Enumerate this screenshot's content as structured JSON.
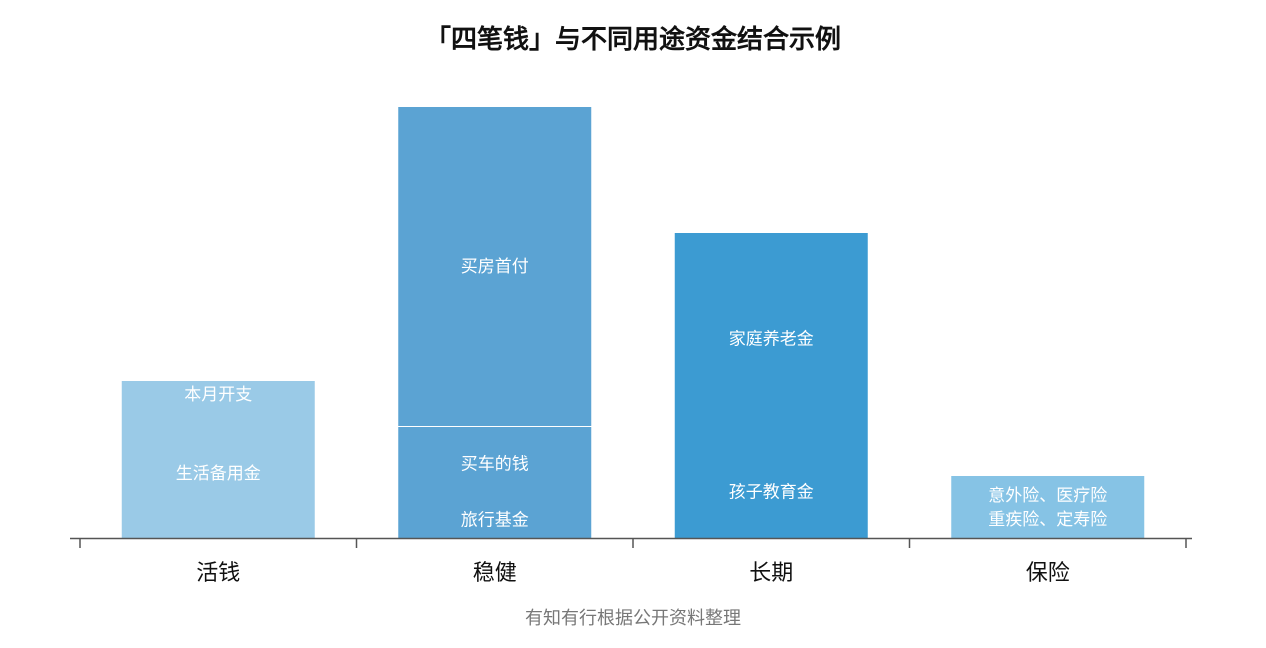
{
  "chart_data": {
    "type": "bar",
    "stacked": true,
    "title": "「四笔钱」与不同用途资金结合示例",
    "source": "有知有行根据公开资料整理",
    "categories": [
      "活钱",
      "稳健",
      "长期",
      "保险"
    ],
    "bars": [
      {
        "category": "活钱",
        "color": "#9ACAE7",
        "segments": [
          {
            "label": [
              "生活备用金"
            ],
            "value": 130
          },
          {
            "label": [
              "本月开支"
            ],
            "value": 28
          }
        ]
      },
      {
        "category": "稳健",
        "color": "#5BA3D3",
        "segments": [
          {
            "label": [
              "旅行基金"
            ],
            "value": 37
          },
          {
            "label": [
              "买车的钱"
            ],
            "value": 75
          },
          {
            "label": [
              "买房首付"
            ],
            "value": 320
          }
        ]
      },
      {
        "category": "长期",
        "color": "#3C9BD2",
        "segments": [
          {
            "label": [
              "孩子教育金"
            ],
            "value": 93
          },
          {
            "label": [
              "家庭养老金"
            ],
            "value": 213
          }
        ]
      },
      {
        "category": "保险",
        "color": "#86C3E5",
        "segments": [
          {
            "label": [
              "意外险、医疗险",
              "重疾险、定寿险"
            ],
            "value": 62
          }
        ]
      }
    ],
    "y_axis_shown": false,
    "grid": false,
    "legend": "none"
  }
}
